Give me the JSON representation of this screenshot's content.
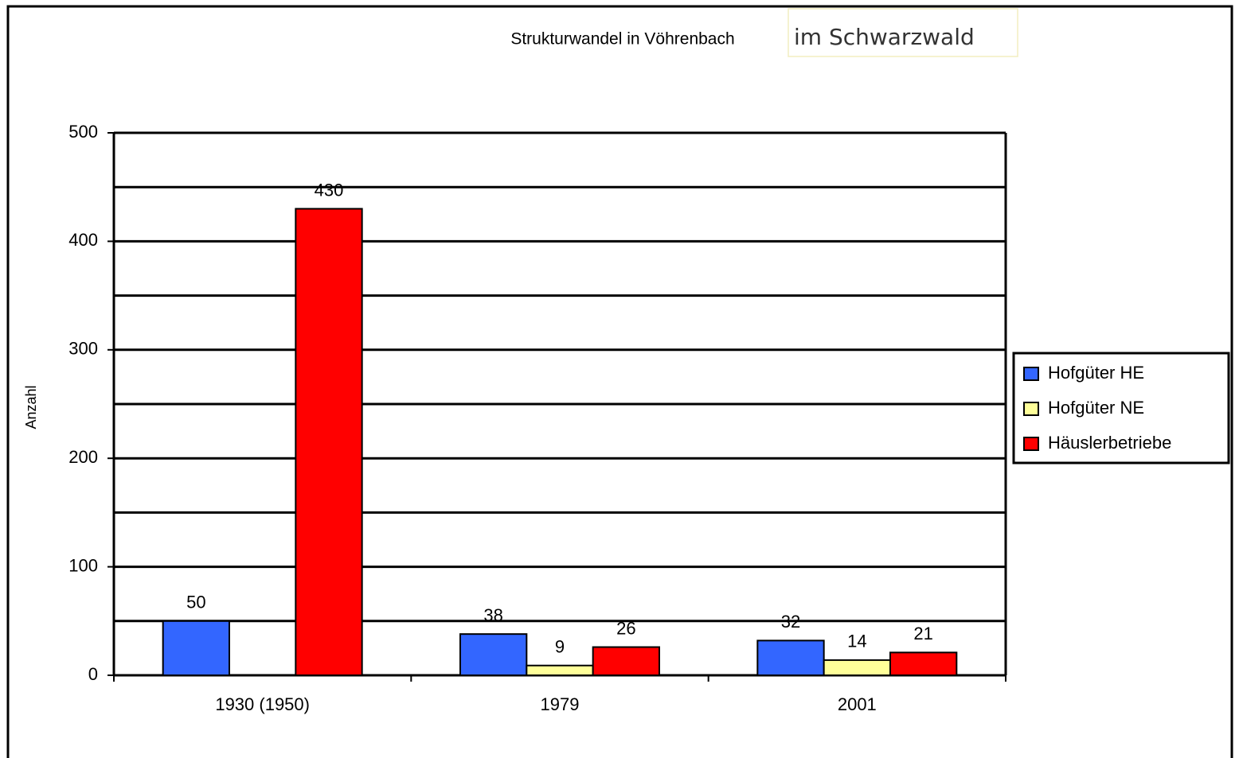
{
  "chart_data": {
    "type": "bar",
    "title": "Strukturwandel in Vöhrenbach",
    "annotation": "im Schwarzwald",
    "y_label": "Anzahl",
    "categories": [
      "1930 (1950)",
      "1979",
      "2001"
    ],
    "series": [
      {
        "name": "Hofgüter HE",
        "color": "#3366ff",
        "values": [
          50,
          38,
          32
        ]
      },
      {
        "name": "Hofgüter NE",
        "color": "#ffff99",
        "values": [
          null,
          9,
          14
        ]
      },
      {
        "name": "Häuslerbetriebe",
        "color": "#ff0000",
        "values": [
          430,
          26,
          21
        ]
      }
    ],
    "ylim": [
      0,
      500
    ],
    "yticks": [
      0,
      100,
      200,
      300,
      400,
      500
    ],
    "grid": true,
    "grid_minor": [
      50,
      150,
      250,
      350,
      450
    ],
    "legend": "right"
  }
}
